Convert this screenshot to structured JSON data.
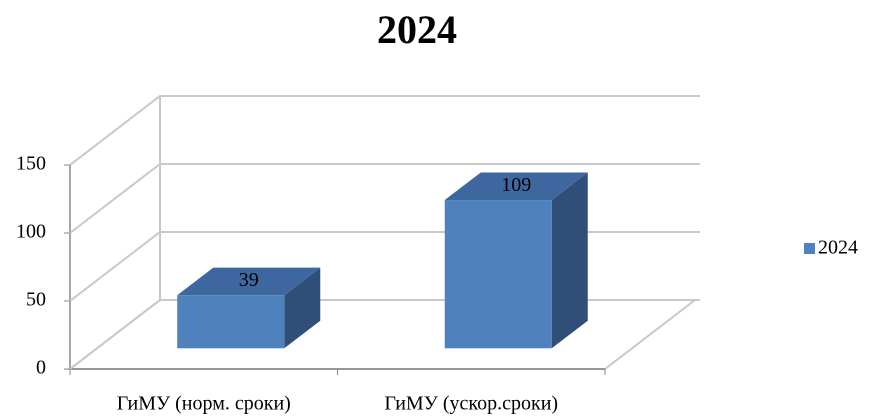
{
  "chart_data": {
    "type": "bar3d",
    "title": "2024",
    "categories": [
      "ГиМУ (норм. сроки)",
      "ГиМУ (ускор.сроки)"
    ],
    "series": [
      {
        "name": "2024",
        "color": "#4f81bd",
        "values": [
          39,
          109
        ]
      }
    ],
    "ylim": [
      0,
      150
    ],
    "yticks": [
      0,
      50,
      100,
      150
    ],
    "grid": true,
    "legend": "right"
  }
}
